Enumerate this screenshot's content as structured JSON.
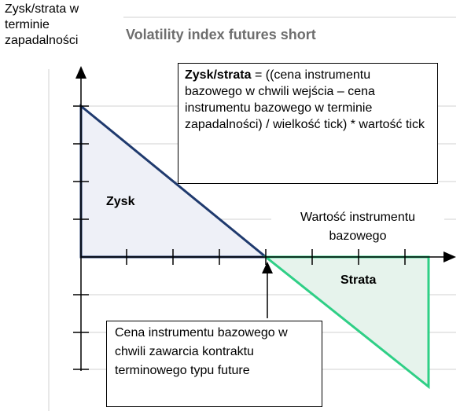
{
  "y_axis_label": "Zysk/strata w terminie zapadalności",
  "title": "Volatility index futures short",
  "formula_box": {
    "label": "Zysk/strata",
    "text": "= ((cena instrumentu bazowego w chwili wejścia – cena instrumentu bazowego w terminie zapadalności) / wielkość tick) * wartość tick"
  },
  "profit_label": "Zysk",
  "loss_label": "Strata",
  "x_axis_label": "Wartość instrumentu bazowego",
  "entry_note": "Cena instrumentu bazowego w chwili zawarcia kontraktu terminowego typu future"
}
